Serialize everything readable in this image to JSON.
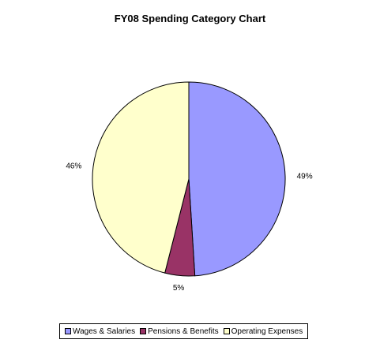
{
  "chart_data": {
    "type": "pie",
    "title": "FY08 Spending Category Chart",
    "categories": [
      "Wages & Salaries",
      "Pensions & Benefits",
      "Operating Expenses"
    ],
    "values": [
      49,
      5,
      46
    ],
    "labels": [
      "49%",
      "5%",
      "46%"
    ],
    "colors": [
      "#9999ff",
      "#993366",
      "#ffffcc"
    ],
    "legend_position": "bottom"
  }
}
